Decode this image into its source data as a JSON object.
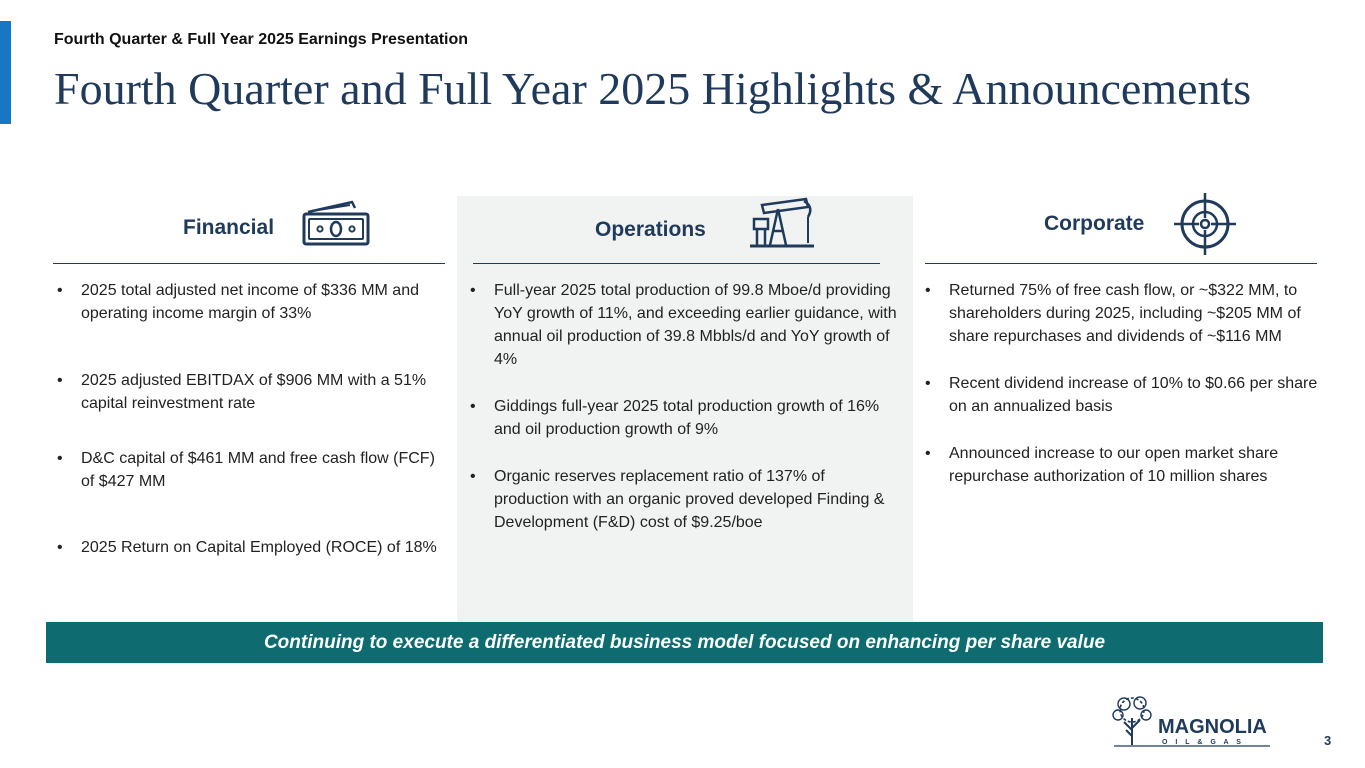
{
  "header": {
    "subtitle": "Fourth Quarter & Full Year 2025 Earnings Presentation",
    "title": "Fourth Quarter and Full Year 2025 Highlights & Announcements"
  },
  "columns": {
    "financial": {
      "heading": "Financial",
      "icon": "money-icon",
      "bullets": [
        "2025 total adjusted net income of $336 MM and operating income margin of 33%",
        "2025 adjusted EBITDAX of $906 MM with a 51% capital reinvestment rate",
        "D&C capital of $461 MM and free cash flow (FCF) of $427 MM",
        "2025 Return on Capital Employed (ROCE) of 18%"
      ]
    },
    "operations": {
      "heading": "Operations",
      "icon": "pumpjack-icon",
      "bullets": [
        "Full-year 2025 total production of 99.8 Mboe/d providing YoY growth of 11%, and exceeding earlier guidance, with annual oil production of 39.8 Mbbls/d and YoY growth of 4%",
        "Giddings full-year 2025 total production growth of 16% and oil production growth of 9%",
        "Organic reserves replacement ratio of 137% of production with an organic proved developed Finding & Development (F&D) cost of $9.25/boe"
      ]
    },
    "corporate": {
      "heading": "Corporate",
      "icon": "target-icon",
      "bullets": [
        "Returned 75% of free cash flow, or ~$322 MM, to shareholders during 2025, including ~$205 MM of share repurchases and dividends of ~$116 MM",
        "Recent dividend increase of 10% to $0.66 per share on an annualized basis",
        "Announced increase to our open market share repurchase authorization of 10 million shares"
      ]
    }
  },
  "banner": {
    "text": "Continuing to execute a differentiated business model focused on enhancing per share value"
  },
  "logo": {
    "name": "MAGNOLIA",
    "tagline": "O I L & G A S"
  },
  "page_number": "3",
  "colors": {
    "accent_blue": "#1877c5",
    "navy": "#1f3a5a",
    "teal": "#0e6b6f",
    "panel_gray": "#f1f2f2"
  }
}
